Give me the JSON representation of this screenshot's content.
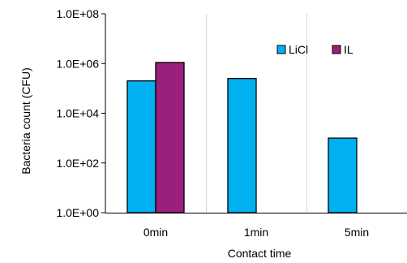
{
  "chart_data": {
    "type": "bar",
    "title": "",
    "xlabel": "Contact time",
    "ylabel": "Bacteria count (CFU)",
    "categories": [
      "0min",
      "1min",
      "5min"
    ],
    "y_scale": "log10",
    "ylim": [
      1,
      100000000
    ],
    "yticks": [
      1,
      100,
      10000,
      1000000,
      100000000
    ],
    "ytick_labels": [
      "1.0E+00",
      "1.0E+02",
      "1.0E+04",
      "1.0E+06",
      "1.0E+08"
    ],
    "grid": "vertical-at-category-boundaries",
    "legend_position": "top-right",
    "series": [
      {
        "name": "LiCl",
        "color": "#00B0F0",
        "values": [
          200000,
          250000,
          1000
        ]
      },
      {
        "name": "IL",
        "color": "#9B1F7C",
        "values": [
          1100000,
          null,
          null
        ]
      }
    ]
  }
}
